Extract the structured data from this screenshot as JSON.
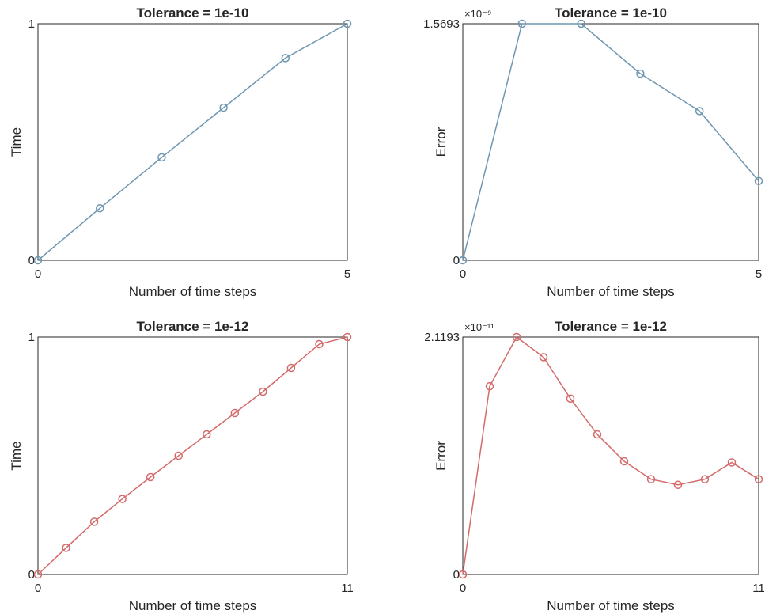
{
  "chart_data": [
    {
      "type": "line",
      "title": "Tolerance = 1e-10",
      "xlabel": "Number of time steps",
      "ylabel": "Time",
      "xlim": [
        0,
        5
      ],
      "ylim": [
        0,
        1
      ],
      "xticks": [
        "0",
        "5"
      ],
      "yticks": [
        "0",
        "1"
      ],
      "exponent_label": "",
      "color": "#6e97b2",
      "marker": "circle",
      "x": [
        0,
        1,
        2,
        3,
        4,
        5
      ],
      "y": [
        0,
        0.22,
        0.435,
        0.645,
        0.855,
        1.0
      ]
    },
    {
      "type": "line",
      "title": "Tolerance = 1e-10",
      "xlabel": "Number of time steps",
      "ylabel": "Error",
      "xlim": [
        0,
        5
      ],
      "ylim": [
        0,
        1.5693
      ],
      "xticks": [
        "0",
        "5"
      ],
      "yticks": [
        "0",
        "1.5693"
      ],
      "exponent_label": "×10⁻⁹",
      "color": "#6e97b2",
      "marker": "circle",
      "x": [
        0,
        1,
        2,
        3,
        4,
        5
      ],
      "y": [
        0,
        1.5693,
        1.5693,
        1.238,
        0.99,
        0.526
      ]
    },
    {
      "type": "line",
      "title": "Tolerance = 1e-12",
      "xlabel": "Number of time steps",
      "ylabel": "Time",
      "xlim": [
        0,
        11
      ],
      "ylim": [
        0,
        1
      ],
      "xticks": [
        "0",
        "11"
      ],
      "yticks": [
        "0",
        "1"
      ],
      "exponent_label": "",
      "color": "#d46a6a",
      "marker": "circle",
      "x": [
        0,
        1,
        2,
        3,
        4,
        5,
        6,
        7,
        8,
        9,
        10,
        11
      ],
      "y": [
        0,
        0.112,
        0.222,
        0.318,
        0.41,
        0.5,
        0.59,
        0.68,
        0.77,
        0.87,
        0.97,
        1.0
      ]
    },
    {
      "type": "line",
      "title": "Tolerance = 1e-12",
      "xlabel": "Number of time steps",
      "ylabel": "Error",
      "xlim": [
        0,
        11
      ],
      "ylim": [
        0,
        2.1193
      ],
      "xticks": [
        "0",
        "11"
      ],
      "yticks": [
        "0",
        "2.1193"
      ],
      "exponent_label": "×10⁻¹¹",
      "color": "#d46a6a",
      "marker": "circle",
      "x": [
        0,
        1,
        2,
        3,
        4,
        5,
        6,
        7,
        8,
        9,
        10,
        11
      ],
      "y": [
        0,
        1.68,
        2.1193,
        1.94,
        1.57,
        1.25,
        1.01,
        0.85,
        0.8,
        0.85,
        1.0,
        0.85
      ]
    }
  ]
}
